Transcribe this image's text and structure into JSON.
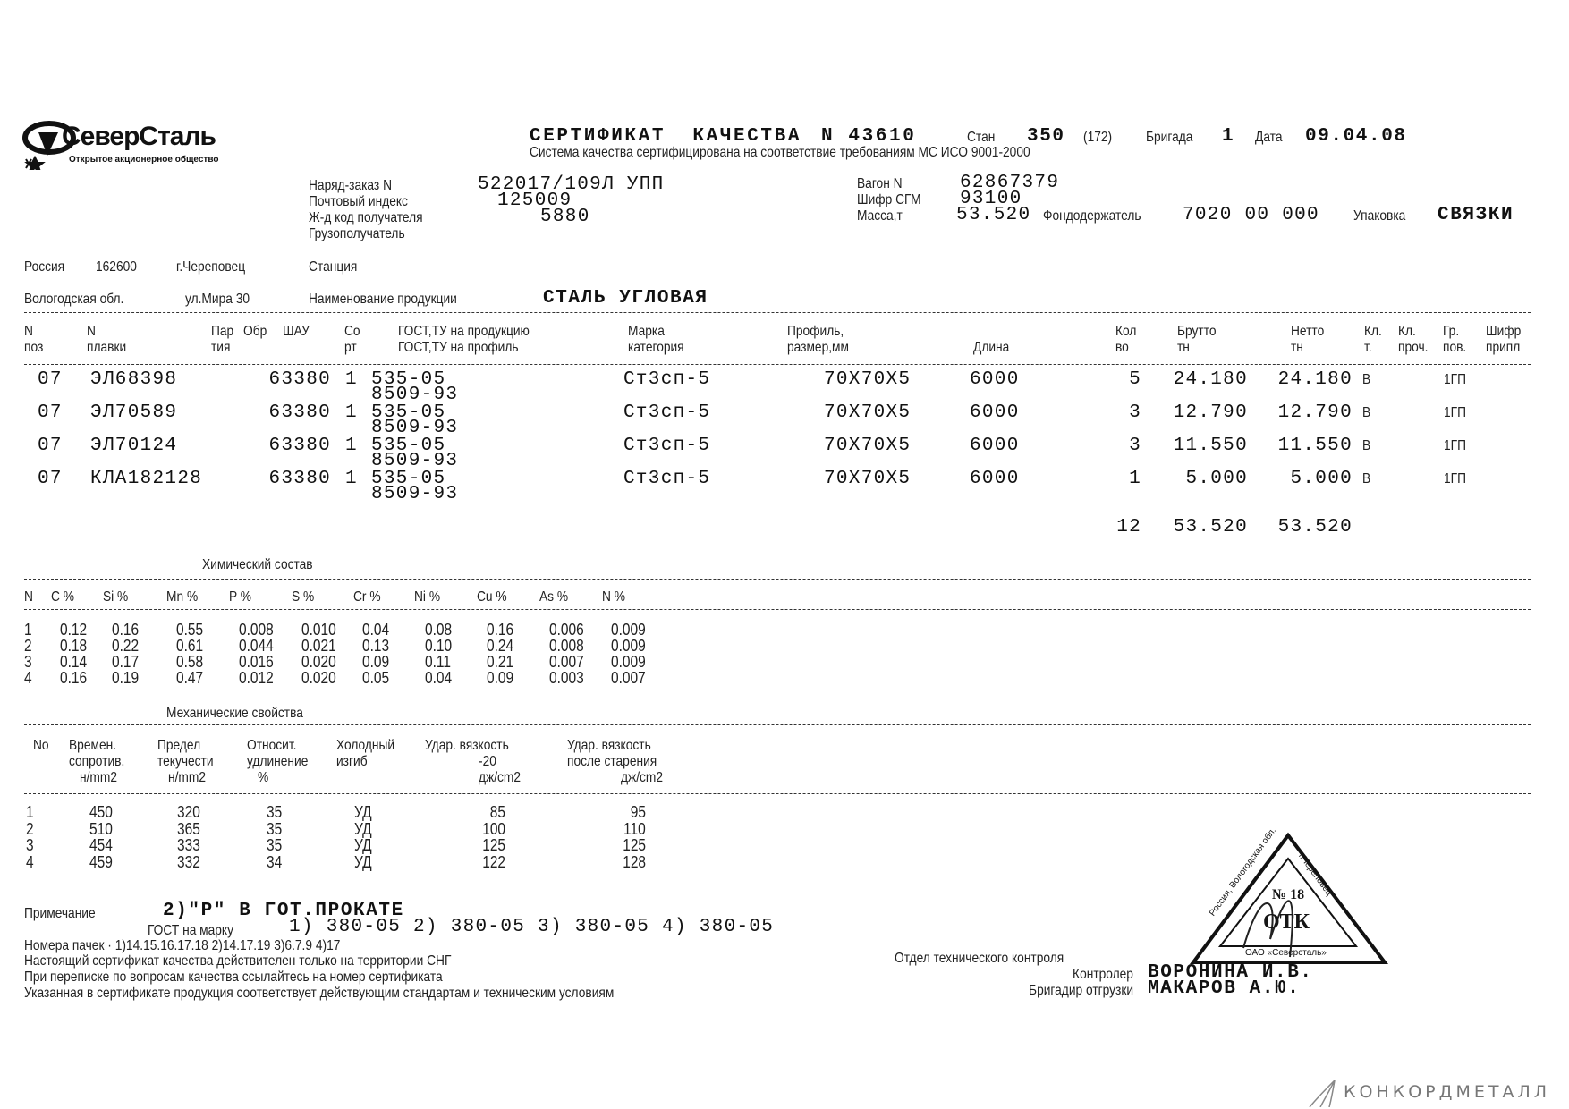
{
  "logo": {
    "name": "СеверСталь",
    "subtitle": "Открытое акционерное общество"
  },
  "header": {
    "title": "СЕРТИФИКАТ  КАЧЕСТВА",
    "cert_number": "N 43610",
    "mill_label": "Стан",
    "mill_value": "350",
    "mill_code": "(172)",
    "brigade_label": "Бригада",
    "brigade_value": "1",
    "date_label": "Дата",
    "date_value": "09.04.08",
    "quality_system": "Система качества сертифицирована на соответствие требованиям МС ИСО 9001-2000"
  },
  "order": {
    "order_label": "Наряд-заказ N",
    "order_value": "522017/109Л УПП",
    "postcode_label": "Почтовый индекс",
    "postcode_value": "125009",
    "rail_code_label": "Ж-д код получателя",
    "rail_code_value": "5880",
    "consignee_label": "Грузополучатель",
    "wagon_label": "Вагон N",
    "wagon_value": "62867379",
    "sgm_label": "Шифр СГМ",
    "sgm_value": "93100",
    "mass_label": "Масса,т",
    "mass_value": "53.520",
    "fundholder_label": "Фондодержатель",
    "fundholder_value": "7020 00 000",
    "packing_label": "Упаковка",
    "packing_value": "СВЯЗКИ"
  },
  "address": {
    "country": "Россия",
    "zip": "162600",
    "city": "г.Череповец",
    "station_label": "Станция",
    "region": "Вологодская обл.",
    "street": "ул.Мира 30",
    "product_label": "Наименование продукции",
    "product_value": "СТАЛЬ УГЛОВАЯ"
  },
  "main_table": {
    "headers": [
      [
        "N",
        "поз"
      ],
      [
        "N",
        "плавки"
      ],
      [
        "Пар",
        "тия"
      ],
      [
        "Обр",
        ""
      ],
      [
        "ШАУ",
        ""
      ],
      [
        "Со",
        "рт"
      ],
      [
        "ГОСТ,ТУ на продукцию",
        "ГОСТ,ТУ на профиль"
      ],
      [
        "Марка",
        "категория"
      ],
      [
        "Профиль,",
        "размер,мм"
      ],
      [
        "",
        "Длина"
      ],
      [
        "Кол",
        "во"
      ],
      [
        "Брутто",
        "тн"
      ],
      [
        "Нетто",
        "тн"
      ],
      [
        "Кл.",
        "т."
      ],
      [
        "Кл.",
        "проч."
      ],
      [
        "Гр.",
        "пов."
      ],
      [
        "Шифр",
        "припл"
      ]
    ],
    "rows": [
      {
        "pos": "07",
        "heat": "ЭЛ68398",
        "batch": "63380",
        "sort": "1",
        "gost_product": "535-05",
        "gost_profile": "8509-93",
        "grade": "Ст3сп-5",
        "profile": "70X70X5",
        "length": "6000",
        "qty": "5",
        "gross": "24.180",
        "net": "24.180",
        "cls_t": "В",
        "surface": "1ГП"
      },
      {
        "pos": "07",
        "heat": "ЭЛ70589",
        "batch": "63380",
        "sort": "1",
        "gost_product": "535-05",
        "gost_profile": "8509-93",
        "grade": "Ст3сп-5",
        "profile": "70X70X5",
        "length": "6000",
        "qty": "3",
        "gross": "12.790",
        "net": "12.790",
        "cls_t": "В",
        "surface": "1ГП"
      },
      {
        "pos": "07",
        "heat": "ЭЛ70124",
        "batch": "63380",
        "sort": "1",
        "gost_product": "535-05",
        "gost_profile": "8509-93",
        "grade": "Ст3сп-5",
        "profile": "70X70X5",
        "length": "6000",
        "qty": "3",
        "gross": "11.550",
        "net": "11.550",
        "cls_t": "В",
        "surface": "1ГП"
      },
      {
        "pos": "07",
        "heat": "КЛА182128",
        "batch": "63380",
        "sort": "1",
        "gost_product": "535-05",
        "gost_profile": "8509-93",
        "grade": "Ст3сп-5",
        "profile": "70X70X5",
        "length": "6000",
        "qty": "1",
        "gross": "5.000",
        "net": "5.000",
        "cls_t": "В",
        "surface": "1ГП"
      }
    ],
    "totals": {
      "qty": "12",
      "gross": "53.520",
      "net": "53.520"
    }
  },
  "chemistry": {
    "title": "Химический состав",
    "headers": [
      "N",
      "C %",
      "Si %",
      "Mn %",
      "P %",
      "S %",
      "Cr %",
      "Ni %",
      "Cu %",
      "As %",
      "N %"
    ],
    "rows": [
      [
        "1",
        "0.12",
        "0.16",
        "0.55",
        "0.008",
        "0.010",
        "0.04",
        "0.08",
        "0.16",
        "0.006",
        "0.009"
      ],
      [
        "2",
        "0.18",
        "0.22",
        "0.61",
        "0.044",
        "0.021",
        "0.13",
        "0.10",
        "0.24",
        "0.008",
        "0.009"
      ],
      [
        "3",
        "0.14",
        "0.17",
        "0.58",
        "0.016",
        "0.020",
        "0.09",
        "0.11",
        "0.21",
        "0.007",
        "0.009"
      ],
      [
        "4",
        "0.16",
        "0.19",
        "0.47",
        "0.012",
        "0.020",
        "0.05",
        "0.04",
        "0.09",
        "0.003",
        "0.007"
      ]
    ]
  },
  "mechanical": {
    "title": "Механические свойства",
    "headers": [
      [
        "No",
        "",
        ""
      ],
      [
        "Времен.",
        "сопротив.",
        "н/mm2"
      ],
      [
        "Предел",
        "текучести",
        "н/mm2"
      ],
      [
        "Относит.",
        "удлинение",
        "%"
      ],
      [
        "Холодный",
        "изгиб",
        ""
      ],
      [
        "Удар. вязкость",
        "-20",
        "дж/cm2"
      ],
      [
        "Удар. вязкость",
        "после старения",
        "дж/cm2"
      ]
    ],
    "rows": [
      [
        "1",
        "450",
        "320",
        "35",
        "УД",
        "85",
        "95"
      ],
      [
        "2",
        "510",
        "365",
        "35",
        "УД",
        "100",
        "110"
      ],
      [
        "3",
        "454",
        "333",
        "35",
        "УД",
        "125",
        "125"
      ],
      [
        "4",
        "459",
        "332",
        "34",
        "УД",
        "122",
        "128"
      ]
    ]
  },
  "notes": {
    "note_label": "Примечание",
    "note_value": "2)\"P\" В ГОТ.ПРОКАТЕ",
    "gost_grade_label": "ГОСТ на марку",
    "gost_grade_value": "1) 380-05 2) 380-05 3) 380-05 4) 380-05",
    "packs": "Номера пачек · 1)14.15.16.17.18 2)14.17.19 3)6.7.9 4)17",
    "line1": "Настоящий сертификат качества действителен только на территории СНГ",
    "line2": "При переписке по вопросам качества ссылайтесь на номер сертификата",
    "line3": "Указанная в сертификате продукция соответствует действующим стандартам и техническим условиям"
  },
  "signatures": {
    "dept": "Отдел технического контроля",
    "controller_label": "Контролер",
    "controller_name": "ВОРОНИНА И.В.",
    "foreman_label": "Бригадир отгрузки",
    "foreman_name": "МАКАРОВ А.Ю."
  },
  "stamp": {
    "number": "№ 18",
    "center": "ОТК",
    "left_text": "Россия, Вологодская обл.",
    "right_text": "г.Череповец",
    "bottom_text": "ОАО «Северсталь»"
  },
  "watermark": {
    "text": "КОНКОРДМЕТАЛЛ"
  }
}
